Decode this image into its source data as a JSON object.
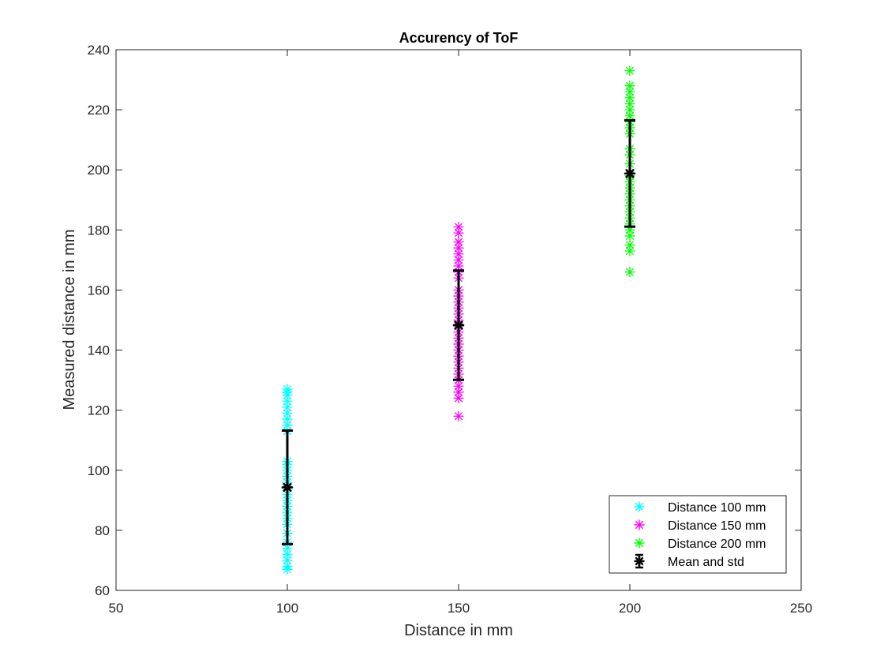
{
  "chart_data": {
    "type": "scatter",
    "title": "Accurency of ToF",
    "xlabel": "Distance in mm",
    "ylabel": "Measured distance in mm",
    "xlim": [
      50,
      250
    ],
    "ylim": [
      60,
      240
    ],
    "xticks": [
      50,
      100,
      150,
      200,
      250
    ],
    "yticks": [
      60,
      80,
      100,
      120,
      140,
      160,
      180,
      200,
      220,
      240
    ],
    "grid": false,
    "legend_position": "bottom-right",
    "series": [
      {
        "name": "Distance 100 mm",
        "color": "#00ffff",
        "marker": "asterisk",
        "x": 100,
        "values": [
          67,
          68,
          70,
          72,
          74,
          76,
          79,
          82,
          84,
          86,
          88,
          90,
          92,
          94,
          96,
          98,
          100,
          102,
          103,
          113,
          115,
          117,
          119,
          121,
          123,
          125,
          126,
          127
        ]
      },
      {
        "name": "Distance 150 mm",
        "color": "#ff00ff",
        "marker": "asterisk",
        "x": 150,
        "values": [
          118,
          124,
          126,
          128,
          130,
          132,
          134,
          136,
          138,
          140,
          142,
          144,
          146,
          148,
          150,
          152,
          154,
          156,
          158,
          160,
          164,
          166,
          168,
          170,
          172,
          174,
          176,
          179,
          181
        ]
      },
      {
        "name": "Distance 200 mm",
        "color": "#00ff00",
        "marker": "asterisk",
        "x": 200,
        "values": [
          166,
          173,
          175,
          178,
          180,
          182,
          184,
          186,
          188,
          190,
          192,
          194,
          196,
          198,
          202,
          205,
          207,
          212,
          214,
          216,
          218,
          220,
          222,
          224,
          226,
          228,
          233
        ]
      },
      {
        "name": "Mean and std",
        "color": "#000000",
        "marker": "asterisk-errorbar",
        "points": [
          {
            "x": 100,
            "mean": 94.3,
            "std": 18.9
          },
          {
            "x": 150,
            "mean": 148.3,
            "std": 18.2
          },
          {
            "x": 200,
            "mean": 198.8,
            "std": 17.7
          }
        ]
      }
    ]
  }
}
